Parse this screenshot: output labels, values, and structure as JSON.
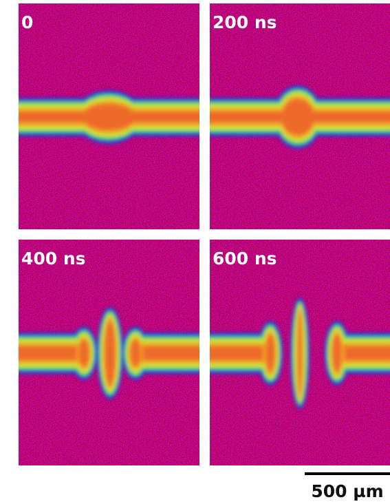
{
  "panels": [
    {
      "label": "0"
    },
    {
      "label": "200 ns"
    },
    {
      "label": "400 ns"
    },
    {
      "label": "600 ns"
    }
  ],
  "scale_bar": {
    "label": "500 µm"
  }
}
